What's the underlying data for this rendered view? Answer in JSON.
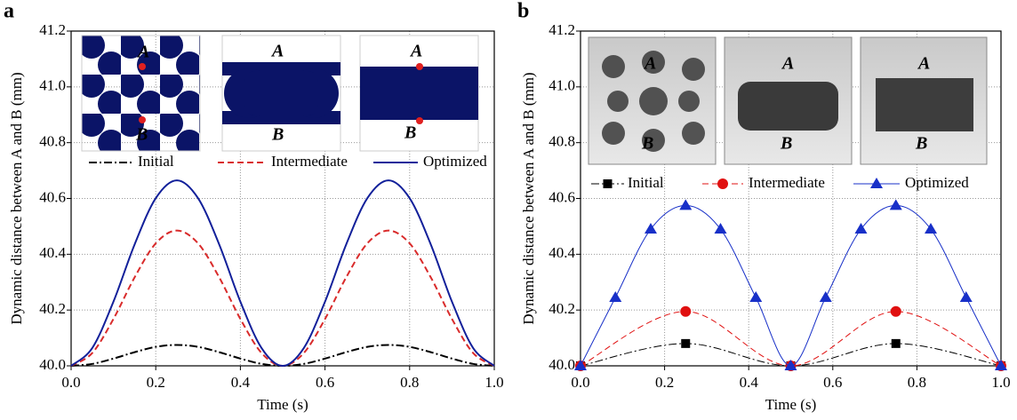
{
  "chart_data": [
    {
      "type": "line",
      "panel_label": "a",
      "x_label": "Time (s)",
      "y_label": "Dynamic distance between A and B (mm)",
      "inset_labels": [
        "A",
        "B"
      ],
      "xlim": [
        0,
        1
      ],
      "ylim": [
        40,
        41.2
      ],
      "xticks": [
        {
          "value": 0,
          "label": "0.0"
        },
        0.2,
        0.4,
        0.6,
        0.8,
        {
          "value": 1,
          "label": "1.0"
        }
      ],
      "yticks": [
        {
          "value": 40,
          "label": "40.0"
        },
        40.2,
        40.4,
        40.6,
        40.8,
        {
          "value": 41,
          "label": "41.0"
        },
        41.2
      ],
      "grid": true,
      "x": [
        0,
        0.05,
        0.1,
        0.15,
        0.2,
        0.25,
        0.3,
        0.35,
        0.4,
        0.45,
        0.5,
        0.55,
        0.6,
        0.65,
        0.7,
        0.75,
        0.8,
        0.85,
        0.9,
        0.95,
        1
      ],
      "series": [
        {
          "name": "Initial",
          "color": "#000000",
          "line_style": "dashdot",
          "values": [
            40,
            40.007,
            40.026,
            40.049,
            40.068,
            40.075,
            40.068,
            40.049,
            40.026,
            40.007,
            40,
            40.007,
            40.026,
            40.049,
            40.068,
            40.075,
            40.068,
            40.049,
            40.026,
            40.007,
            40
          ]
        },
        {
          "name": "Intermediate",
          "color": "#d92b2b",
          "line_style": "dashed",
          "values": [
            40,
            40.046,
            40.168,
            40.317,
            40.439,
            40.485,
            40.439,
            40.317,
            40.168,
            40.046,
            40,
            40.046,
            40.168,
            40.317,
            40.439,
            40.485,
            40.439,
            40.317,
            40.168,
            40.046,
            40
          ]
        },
        {
          "name": "Optimized",
          "color": "#12209a",
          "line_style": "solid",
          "values": [
            40,
            40.064,
            40.23,
            40.435,
            40.601,
            40.665,
            40.601,
            40.435,
            40.23,
            40.064,
            40,
            40.064,
            40.23,
            40.435,
            40.601,
            40.665,
            40.601,
            40.435,
            40.23,
            40.064,
            40
          ]
        }
      ]
    },
    {
      "type": "line",
      "panel_label": "b",
      "x_label": "Time (s)",
      "y_label": "Dynamic distance between A and B (mm)",
      "inset_labels": [
        "A",
        "B"
      ],
      "xlim": [
        0,
        1
      ],
      "ylim": [
        40,
        41.2
      ],
      "xticks": [
        {
          "value": 0,
          "label": "0.0"
        },
        0.2,
        0.4,
        0.6,
        0.8,
        {
          "value": 1,
          "label": "1.0"
        }
      ],
      "yticks": [
        {
          "value": 40,
          "label": "40.0"
        },
        40.2,
        40.4,
        40.6,
        40.8,
        {
          "value": 41,
          "label": "41.0"
        },
        41.2
      ],
      "grid": true,
      "series": [
        {
          "name": "Initial",
          "color": "#000000",
          "line_style": "dashdot",
          "marker": "square",
          "x": [
            0,
            0.25,
            0.5,
            0.75,
            1
          ],
          "values": [
            40,
            40.08,
            40,
            40.08,
            40
          ]
        },
        {
          "name": "Intermediate",
          "color": "#e01010",
          "line_style": "dashed",
          "marker": "circle",
          "x": [
            0,
            0.25,
            0.5,
            0.75,
            1
          ],
          "values": [
            40,
            40.195,
            40,
            40.195,
            40
          ]
        },
        {
          "name": "Optimized",
          "color": "#1830c8",
          "line_style": "solid",
          "marker": "triangle",
          "x": [
            0,
            0.083,
            0.167,
            0.25,
            0.333,
            0.417,
            0.5,
            0.583,
            0.667,
            0.75,
            0.833,
            0.917,
            1
          ],
          "values": [
            40,
            40.245,
            40.49,
            40.575,
            40.49,
            40.245,
            40,
            40.245,
            40.49,
            40.575,
            40.49,
            40.245,
            40
          ]
        }
      ]
    }
  ]
}
